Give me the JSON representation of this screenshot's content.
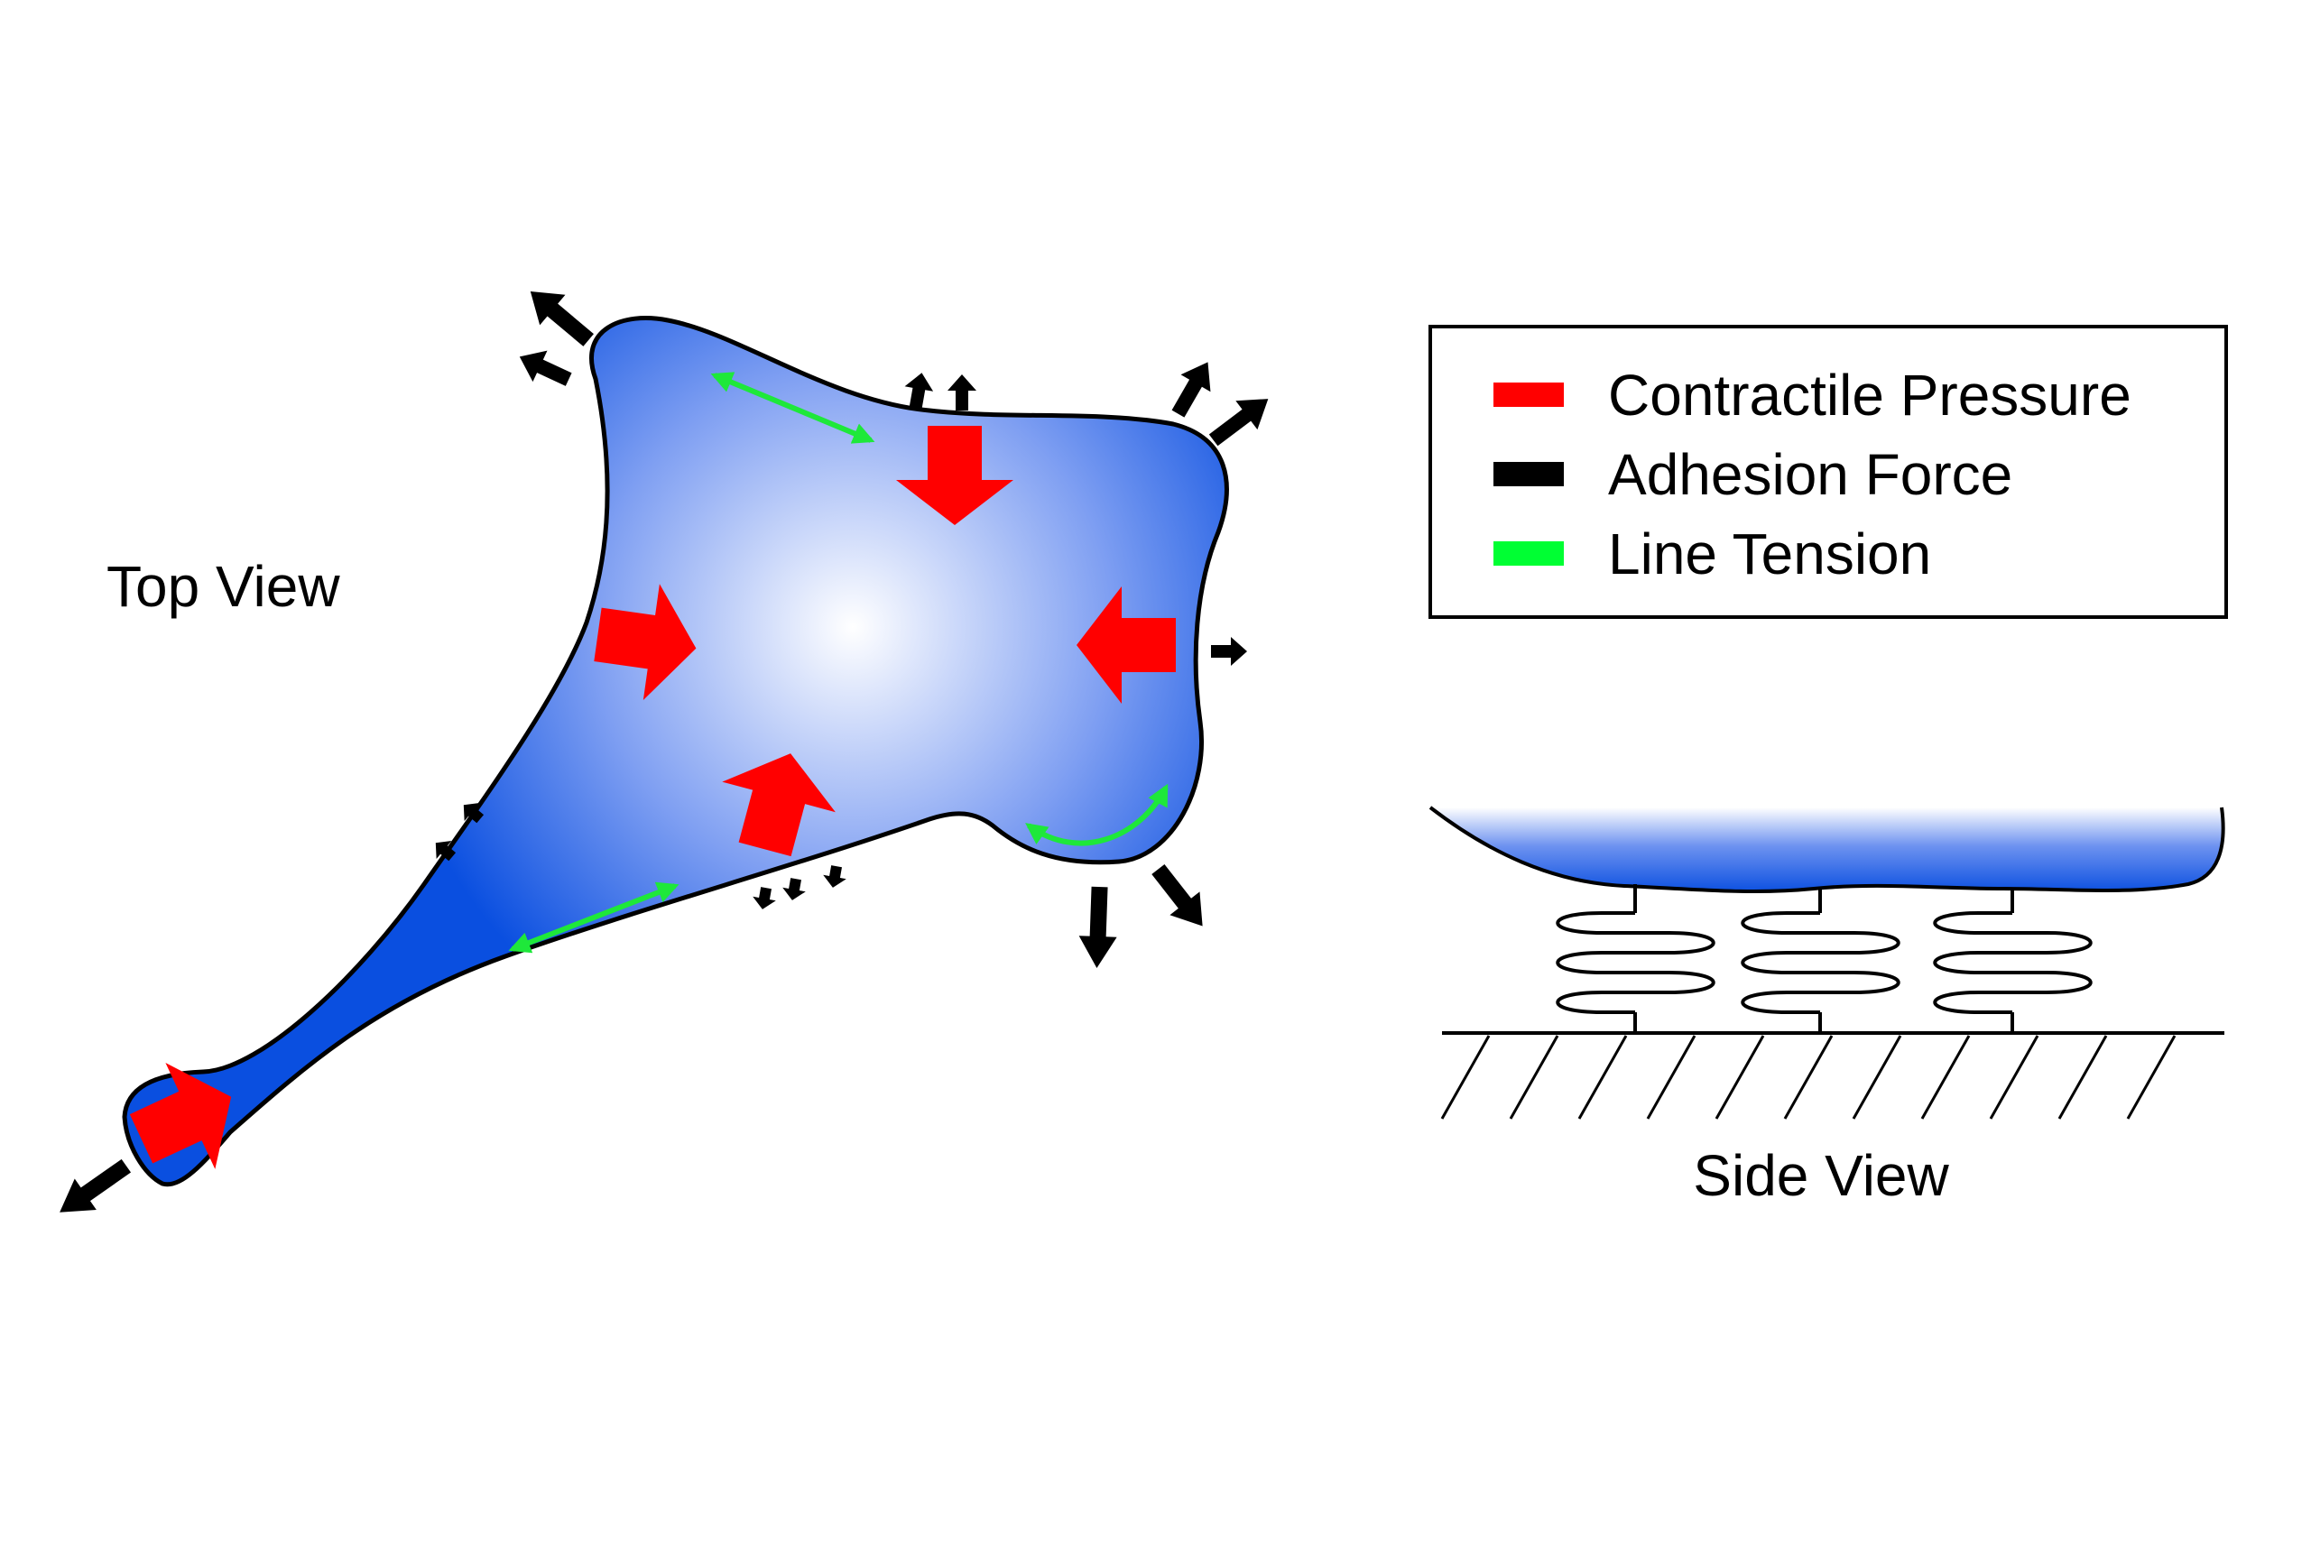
{
  "top_view": {
    "label": "Top View"
  },
  "side_view": {
    "label": "Side View"
  },
  "legend": {
    "items": [
      {
        "label": "Contractile Pressure",
        "color": "#ff0000"
      },
      {
        "label": "Adhesion Force",
        "color": "#000000"
      },
      {
        "label": "Line Tension",
        "color": "#00ff33"
      }
    ]
  },
  "colors": {
    "cell_edge": "#0a4fe0",
    "cell_center": "#ffffff",
    "outline": "#000000",
    "contractile": "#ff0000",
    "adhesion": "#000000",
    "tension": "#1ee83a"
  },
  "icons": {
    "contractile": "red-block-arrow-icon",
    "adhesion": "black-arrow-icon",
    "tension": "green-double-arrow-icon",
    "spring": "spring-icon",
    "substrate": "hatched-ground-icon"
  }
}
